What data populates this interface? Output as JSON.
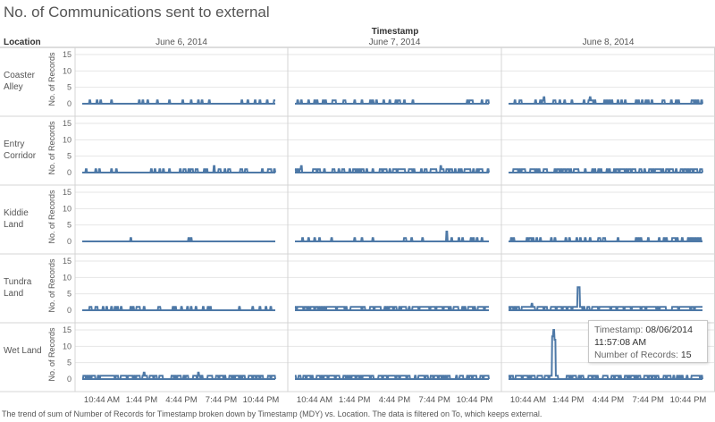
{
  "title": "No. of Communications sent to external",
  "column_header": "Timestamp",
  "row_header": "Location",
  "caption": "The trend of sum of Number of Records for Timestamp broken down by Timestamp (MDY) vs. Location.  The data is filtered on To, which keeps external.",
  "tooltip": {
    "label_timestamp": "Timestamp:",
    "value_date": "08/06/2014",
    "value_time": "11:57:08 AM",
    "label_records": "Number of Records:",
    "value_records": "15"
  },
  "colors": {
    "series": "#4e79a7",
    "grid": "#e6e6e6",
    "divider": "#d4d4d4"
  },
  "chart_data": {
    "type": "line",
    "columns": [
      "June 6, 2014",
      "June 7, 2014",
      "June 8, 2014"
    ],
    "rows": [
      {
        "label": [
          "Coaster",
          "Alley"
        ],
        "key": "coaster"
      },
      {
        "label": [
          "Entry",
          "Corridor"
        ],
        "key": "entry"
      },
      {
        "label": [
          "Kiddie",
          "Land"
        ],
        "key": "kiddie"
      },
      {
        "label": [
          "Tundra",
          "Land"
        ],
        "key": "tundra"
      },
      {
        "label": [
          "Wet Land"
        ],
        "key": "wet"
      }
    ],
    "ylabel": "No. of Records",
    "yticks": [
      0,
      5,
      10,
      15
    ],
    "ylim": [
      0,
      15
    ],
    "xticks": [
      "10:44 AM",
      "1:44 PM",
      "4:44 PM",
      "7:44 PM",
      "10:44 PM"
    ],
    "grid": true,
    "series": {
      "coaster": [
        {
          "density": 0.1,
          "peaks": []
        },
        {
          "density": 0.14,
          "peaks": []
        },
        {
          "density": 0.25,
          "peaks": [
            [
              0.42,
              2
            ],
            [
              0.18,
              2
            ]
          ]
        }
      ],
      "entry": [
        {
          "density": 0.18,
          "peaks": [
            [
              0.68,
              2
            ]
          ]
        },
        {
          "density": 0.45,
          "peaks": [
            [
              0.03,
              2
            ],
            [
              0.75,
              2
            ]
          ]
        },
        {
          "density": 0.45,
          "peaks": []
        }
      ],
      "kiddie": [
        {
          "density": 0.04,
          "peaks": []
        },
        {
          "density": 0.14,
          "peaks": [
            [
              0.78,
              3
            ]
          ]
        },
        {
          "density": 0.22,
          "peaks": []
        }
      ],
      "tundra": [
        {
          "density": 0.16,
          "peaks": []
        },
        {
          "density": 0.75,
          "peaks": []
        },
        {
          "density": 0.75,
          "peaks": [
            [
              0.36,
              7
            ],
            [
              0.12,
              2
            ]
          ]
        }
      ],
      "wet": [
        {
          "density": 0.55,
          "peaks": [
            [
              0.32,
              2
            ],
            [
              0.6,
              2
            ]
          ]
        },
        {
          "density": 0.6,
          "peaks": []
        },
        {
          "density": 0.55,
          "peaks": [
            [
              0.23,
              15
            ],
            [
              0.225,
              13
            ],
            [
              0.235,
              12
            ]
          ]
        }
      ]
    }
  }
}
